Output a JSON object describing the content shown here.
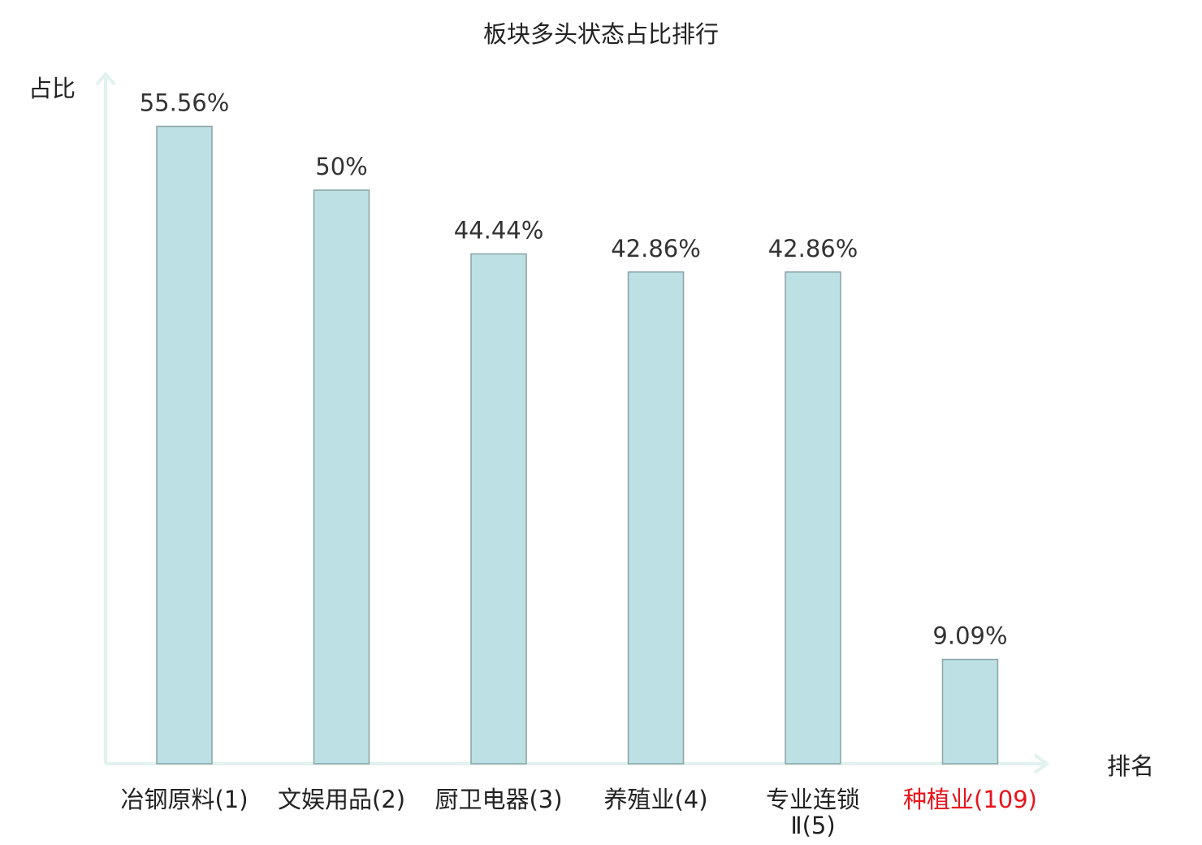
{
  "chart_data": {
    "type": "bar",
    "title": "板块多头状态占比排行",
    "xlabel": "排名",
    "ylabel": "占比",
    "ylim": [
      0,
      60
    ],
    "grid": false,
    "legend": "none",
    "categories": [
      {
        "name": "冶钢原料",
        "rank": "(1)"
      },
      {
        "name": "文娱用品",
        "rank": "(2)"
      },
      {
        "name": "厨卫电器",
        "rank": "(3)"
      },
      {
        "name": "养殖业",
        "rank": "(4)"
      },
      {
        "name": "专业连锁",
        "rank": "Ⅱ(5)"
      },
      {
        "name": "种植业",
        "rank": "(109)"
      }
    ],
    "values": [
      55.56,
      50,
      44.44,
      42.86,
      42.86,
      9.09
    ],
    "value_labels": [
      "55.56%",
      "50%",
      "44.44%",
      "42.86%",
      "42.86%",
      "9.09%"
    ],
    "highlight_index": 5,
    "colors": {
      "bar_fill": "#bce0e3",
      "bar_stroke": "#8aa3a6",
      "axis": "#e1f2ef",
      "text": "#222222",
      "value_text": "#333333",
      "highlight": "#e8141b"
    }
  }
}
